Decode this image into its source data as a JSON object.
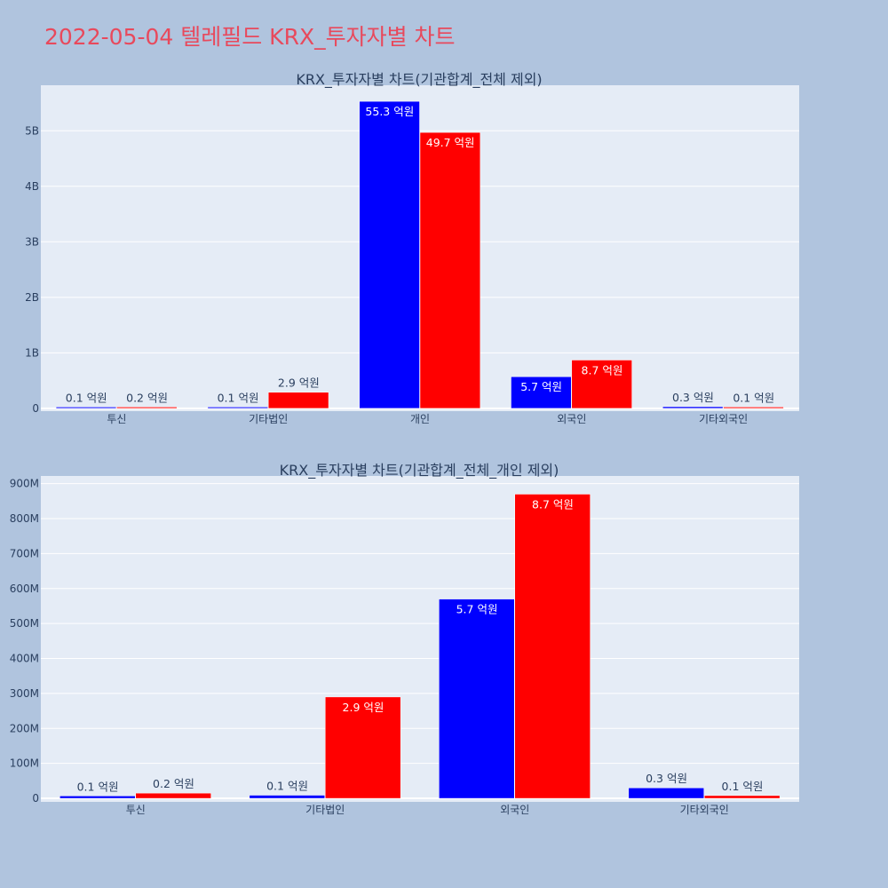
{
  "title": "2022-05-04 텔레필드 KRX_투자자별 차트",
  "colors": {
    "buy": "#0000ff",
    "sell": "#ff0000",
    "plot_bg": "#e5ecf6",
    "page_bg": "#b0c4de",
    "title": "#e8495c"
  },
  "chart_data": [
    {
      "type": "bar",
      "title": "KRX_투자자별 차트(기관합계_전체 제외)",
      "categories": [
        "투신",
        "기타법인",
        "개인",
        "외국인",
        "기타외국인"
      ],
      "series": [
        {
          "color": "#0000ff",
          "values": [
            10000000,
            10000000,
            5530000000,
            570000000,
            30000000
          ],
          "labels": [
            "0.1 억원",
            "0.1 억원",
            "55.3 억원",
            "5.7 억원",
            "0.3 억원"
          ]
        },
        {
          "color": "#ff0000",
          "values": [
            20000000,
            290000000,
            4970000000,
            870000000,
            10000000
          ],
          "labels": [
            "0.2 억원",
            "2.9 억원",
            "49.7 억원",
            "8.7 억원",
            "0.1 억원"
          ]
        }
      ],
      "ylim": [
        -50000000,
        5820000000
      ],
      "yticks": [
        0,
        1000000000,
        2000000000,
        3000000000,
        4000000000,
        5000000000
      ],
      "yticklabels": [
        "0",
        "1B",
        "2B",
        "3B",
        "4B",
        "5B"
      ],
      "grid": true
    },
    {
      "type": "bar",
      "title": "KRX_투자자별 차트(기관합계_전체_개인 제외)",
      "categories": [
        "투신",
        "기타법인",
        "외국인",
        "기타외국인"
      ],
      "series": [
        {
          "color": "#0000ff",
          "values": [
            7000000,
            9000000,
            570000000,
            30000000
          ],
          "labels": [
            "0.1 억원",
            "0.1 억원",
            "5.7 억원",
            "0.3 억원"
          ]
        },
        {
          "color": "#ff0000",
          "values": [
            15000000,
            290000000,
            870000000,
            8000000
          ],
          "labels": [
            "0.2 억원",
            "2.9 억원",
            "8.7 억원",
            "0.1 억원"
          ]
        }
      ],
      "ylim": [
        -10000000,
        922000000
      ],
      "yticks": [
        0,
        100000000,
        200000000,
        300000000,
        400000000,
        500000000,
        600000000,
        700000000,
        800000000,
        900000000
      ],
      "yticklabels": [
        "0",
        "100M",
        "200M",
        "300M",
        "400M",
        "500M",
        "600M",
        "700M",
        "800M",
        "900M"
      ],
      "grid": true
    }
  ]
}
